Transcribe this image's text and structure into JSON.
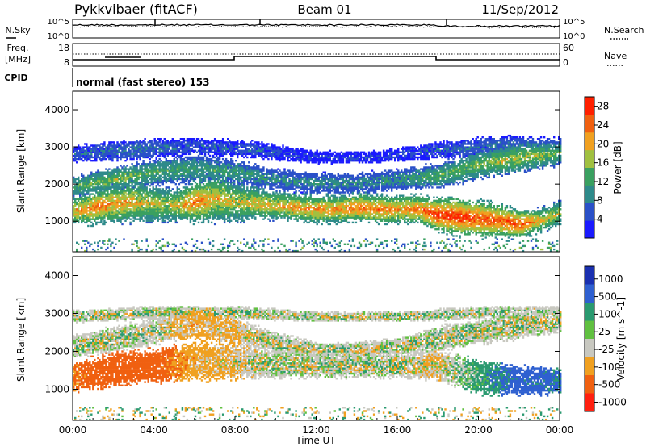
{
  "header": {
    "station": "Pykkvibaer (fitACF)",
    "beam": "Beam 01",
    "date": "11/Sep/2012"
  },
  "noise_panel": {
    "left_label": "N.Sky",
    "right_label": "N.Search",
    "left_ticks": [
      "10^5",
      "10^0"
    ],
    "right_ticks": [
      "10^5",
      "10^0"
    ]
  },
  "freq_panel": {
    "left_label_line1": "Freq.",
    "left_label_line2": "[MHz]",
    "right_label": "Nave",
    "left_ticks": [
      "18",
      "8"
    ],
    "right_ticks": [
      "60",
      "0"
    ]
  },
  "cpid_panel": {
    "label": "CPID",
    "text": "normal (fast stereo) 153"
  },
  "chart_data": [
    {
      "type": "heatmap",
      "title": "",
      "ylabel": "Slant Range [km]",
      "xlabel": "",
      "ylim": [
        180,
        4500
      ],
      "xlim": [
        0,
        24
      ],
      "y_ticks": [
        "1000",
        "2000",
        "3000",
        "4000"
      ],
      "colorbar_label": "Power [dB]",
      "colorbar_ticks": [
        "4",
        "8",
        "12",
        "16",
        "20",
        "24",
        "28"
      ],
      "colorbar_range": [
        0,
        30
      ],
      "colors": [
        "#1a1aff",
        "#2a50c8",
        "#2e8a8a",
        "#3aa060",
        "#a0c040",
        "#f0a020",
        "#f06010",
        "#ff2000"
      ],
      "bands": [
        {
          "t": [
            0,
            1,
            2,
            3,
            4,
            5,
            6,
            7,
            8,
            9,
            10,
            11,
            12,
            13,
            14,
            15,
            16,
            17,
            18,
            19,
            20,
            21,
            22,
            23,
            24
          ],
          "center": [
            1250,
            1350,
            1450,
            1500,
            1450,
            1400,
            1500,
            1600,
            1500,
            1450,
            1400,
            1350,
            1300,
            1300,
            1350,
            1300,
            1300,
            1300,
            1150,
            1100,
            1050,
            1000,
            900,
            1000,
            1200
          ],
          "width": [
            350,
            400,
            450,
            500,
            450,
            400,
            500,
            600,
            500,
            400,
            350,
            350,
            350,
            350,
            350,
            350,
            350,
            350,
            400,
            450,
            450,
            400,
            350,
            300,
            300
          ],
          "power": [
            20,
            24,
            22,
            20,
            18,
            18,
            24,
            20,
            18,
            20,
            20,
            22,
            22,
            22,
            24,
            24,
            22,
            24,
            28,
            28,
            26,
            26,
            26,
            20,
            18
          ]
        },
        {
          "t": [
            0,
            2,
            4,
            6,
            8,
            10,
            12,
            14,
            16,
            18,
            20,
            22,
            24
          ],
          "center": [
            1900,
            2100,
            2300,
            2400,
            2300,
            2100,
            2000,
            2000,
            2100,
            2200,
            2500,
            2700,
            2800
          ],
          "width": [
            250,
            300,
            300,
            350,
            300,
            250,
            250,
            250,
            250,
            300,
            350,
            350,
            300
          ],
          "power": [
            14,
            16,
            14,
            12,
            12,
            10,
            10,
            10,
            10,
            14,
            16,
            18,
            14
          ]
        },
        {
          "t": [
            0,
            3,
            6,
            9,
            12,
            15,
            18,
            21,
            24
          ],
          "center": [
            2800,
            2900,
            3000,
            2900,
            2700,
            2700,
            2900,
            3000,
            3000
          ],
          "width": [
            200,
            250,
            200,
            200,
            150,
            150,
            200,
            250,
            200
          ],
          "power": [
            6,
            8,
            6,
            6,
            4,
            4,
            6,
            8,
            8
          ]
        }
      ]
    },
    {
      "type": "heatmap",
      "title": "",
      "ylabel": "Slant Range [km]",
      "xlabel": "Time UT",
      "ylim": [
        180,
        4500
      ],
      "xlim": [
        0,
        24
      ],
      "x_ticks": [
        "00:00",
        "04:00",
        "08:00",
        "12:00",
        "16:00",
        "20:00",
        "00:00"
      ],
      "y_ticks": [
        "1000",
        "2000",
        "3000",
        "4000"
      ],
      "colorbar_label": "Velocity [m s^-1]",
      "colorbar_ticks": [
        "1000",
        "500",
        "100",
        "25",
        "-25",
        "-100",
        "-500",
        "-1000"
      ],
      "colorbar_range": [
        -1000,
        1000
      ],
      "colors": [
        "#1a30b0",
        "#2f60d0",
        "#2a9a70",
        "#60c040",
        "#c8c8c0",
        "#f0a020",
        "#f06010",
        "#ff2010"
      ],
      "bands": [
        {
          "t": [
            0,
            2,
            4,
            6,
            8,
            10,
            12,
            14,
            16,
            18,
            20,
            22,
            24
          ],
          "center": [
            1300,
            1500,
            1600,
            1700,
            1700,
            1650,
            1600,
            1600,
            1600,
            1600,
            1300,
            1200,
            1200
          ],
          "width": [
            350,
            400,
            400,
            450,
            400,
            350,
            300,
            300,
            300,
            350,
            400,
            350,
            300
          ],
          "vel": [
            -100,
            -200,
            -150,
            -50,
            -25,
            0,
            0,
            0,
            0,
            -25,
            50,
            150,
            100
          ]
        },
        {
          "t": [
            0,
            2,
            4,
            6,
            8,
            10,
            12,
            14,
            16,
            18,
            20,
            22,
            24
          ],
          "center": [
            2100,
            2300,
            2500,
            2700,
            2500,
            2200,
            2000,
            2000,
            2100,
            2300,
            2500,
            2700,
            2800
          ],
          "width": [
            250,
            300,
            300,
            350,
            300,
            250,
            200,
            200,
            200,
            300,
            300,
            350,
            300
          ],
          "vel": [
            0,
            0,
            0,
            -50,
            -25,
            0,
            0,
            0,
            0,
            0,
            0,
            0,
            0
          ]
        },
        {
          "t": [
            0,
            4,
            8,
            12,
            16,
            20,
            24
          ],
          "center": [
            2900,
            3000,
            3000,
            2900,
            2900,
            3000,
            3000
          ],
          "width": [
            150,
            150,
            150,
            120,
            120,
            150,
            150
          ],
          "vel": [
            0,
            0,
            0,
            0,
            0,
            0,
            0
          ]
        }
      ]
    }
  ]
}
